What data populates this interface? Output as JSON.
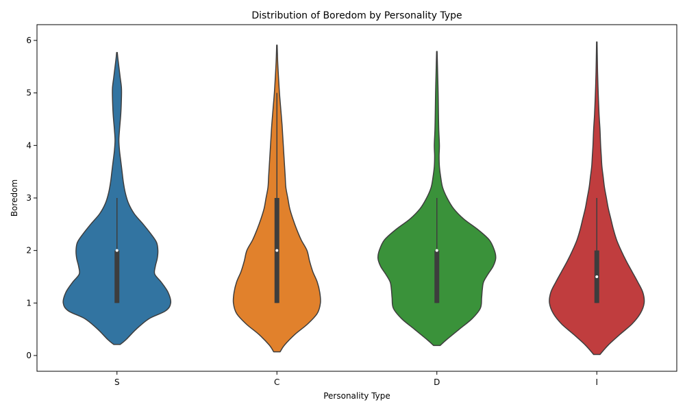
{
  "chart_data": {
    "type": "violin",
    "title": "Distribution of Boredom by Personality Type",
    "xlabel": "Personality Type",
    "ylabel": "Boredom",
    "categories": [
      "S",
      "C",
      "D",
      "I"
    ],
    "ylim": [
      -0.3,
      6.3
    ],
    "yticks": [
      0,
      1,
      2,
      3,
      4,
      5,
      6
    ],
    "grid": false,
    "series": [
      {
        "category": "S",
        "color": "#3274a1",
        "box": {
          "q1": 1,
          "median": 2,
          "q3": 2,
          "whisker_low": 1,
          "whisker_high": 3
        },
        "density": [
          [
            0.21,
            0.05
          ],
          [
            0.3,
            0.14
          ],
          [
            0.5,
            0.3
          ],
          [
            0.7,
            0.5
          ],
          [
            0.85,
            0.76
          ],
          [
            1.0,
            0.84
          ],
          [
            1.2,
            0.8
          ],
          [
            1.4,
            0.69
          ],
          [
            1.55,
            0.59
          ],
          [
            1.7,
            0.6
          ],
          [
            1.85,
            0.63
          ],
          [
            2.0,
            0.64
          ],
          [
            2.15,
            0.62
          ],
          [
            2.3,
            0.54
          ],
          [
            2.5,
            0.41
          ],
          [
            2.7,
            0.27
          ],
          [
            2.9,
            0.18
          ],
          [
            3.1,
            0.13
          ],
          [
            3.3,
            0.1
          ],
          [
            3.5,
            0.08
          ],
          [
            3.7,
            0.06
          ],
          [
            3.9,
            0.04
          ],
          [
            4.1,
            0.03
          ],
          [
            4.3,
            0.04
          ],
          [
            4.6,
            0.06
          ],
          [
            4.9,
            0.07
          ],
          [
            5.1,
            0.07
          ],
          [
            5.3,
            0.05
          ],
          [
            5.5,
            0.03
          ],
          [
            5.65,
            0.015
          ],
          [
            5.77,
            0.005
          ]
        ]
      },
      {
        "category": "C",
        "color": "#e1812c",
        "box": {
          "q1": 1,
          "median": 2,
          "q3": 3,
          "whisker_low": 1,
          "whisker_high": 5
        },
        "density": [
          [
            0.07,
            0.05
          ],
          [
            0.2,
            0.12
          ],
          [
            0.4,
            0.28
          ],
          [
            0.6,
            0.48
          ],
          [
            0.8,
            0.63
          ],
          [
            1.0,
            0.68
          ],
          [
            1.2,
            0.67
          ],
          [
            1.4,
            0.63
          ],
          [
            1.6,
            0.56
          ],
          [
            1.8,
            0.51
          ],
          [
            2.0,
            0.47
          ],
          [
            2.2,
            0.38
          ],
          [
            2.4,
            0.31
          ],
          [
            2.6,
            0.25
          ],
          [
            2.8,
            0.2
          ],
          [
            3.0,
            0.17
          ],
          [
            3.2,
            0.14
          ],
          [
            3.4,
            0.13
          ],
          [
            3.6,
            0.12
          ],
          [
            3.8,
            0.11
          ],
          [
            4.0,
            0.1
          ],
          [
            4.2,
            0.09
          ],
          [
            4.4,
            0.08
          ],
          [
            4.7,
            0.06
          ],
          [
            5.0,
            0.04
          ],
          [
            5.3,
            0.025
          ],
          [
            5.6,
            0.012
          ],
          [
            5.91,
            0.004
          ]
        ]
      },
      {
        "category": "D",
        "color": "#3a923a",
        "box": {
          "q1": 1,
          "median": 2,
          "q3": 2,
          "whisker_low": 1,
          "whisker_high": 3
        },
        "density": [
          [
            0.19,
            0.05
          ],
          [
            0.3,
            0.15
          ],
          [
            0.5,
            0.35
          ],
          [
            0.7,
            0.55
          ],
          [
            0.9,
            0.68
          ],
          [
            1.1,
            0.7
          ],
          [
            1.25,
            0.71
          ],
          [
            1.4,
            0.73
          ],
          [
            1.55,
            0.8
          ],
          [
            1.7,
            0.88
          ],
          [
            1.85,
            0.92
          ],
          [
            2.0,
            0.9
          ],
          [
            2.2,
            0.82
          ],
          [
            2.4,
            0.64
          ],
          [
            2.6,
            0.42
          ],
          [
            2.8,
            0.26
          ],
          [
            3.0,
            0.16
          ],
          [
            3.2,
            0.09
          ],
          [
            3.4,
            0.06
          ],
          [
            3.6,
            0.04
          ],
          [
            3.8,
            0.035
          ],
          [
            4.0,
            0.04
          ],
          [
            4.3,
            0.03
          ],
          [
            4.6,
            0.025
          ],
          [
            5.0,
            0.02
          ],
          [
            5.4,
            0.012
          ],
          [
            5.79,
            0.004
          ]
        ]
      },
      {
        "category": "I",
        "color": "#c03d3e",
        "box": {
          "q1": 1,
          "median": 1.5,
          "q3": 2,
          "whisker_low": 1,
          "whisker_high": 3
        },
        "density": [
          [
            0.02,
            0.05
          ],
          [
            0.2,
            0.18
          ],
          [
            0.4,
            0.36
          ],
          [
            0.6,
            0.55
          ],
          [
            0.8,
            0.68
          ],
          [
            1.0,
            0.74
          ],
          [
            1.2,
            0.72
          ],
          [
            1.4,
            0.64
          ],
          [
            1.6,
            0.55
          ],
          [
            1.8,
            0.46
          ],
          [
            2.0,
            0.38
          ],
          [
            2.2,
            0.31
          ],
          [
            2.4,
            0.26
          ],
          [
            2.6,
            0.22
          ],
          [
            2.8,
            0.18
          ],
          [
            3.0,
            0.15
          ],
          [
            3.2,
            0.12
          ],
          [
            3.4,
            0.1
          ],
          [
            3.6,
            0.08
          ],
          [
            3.8,
            0.07
          ],
          [
            4.0,
            0.06
          ],
          [
            4.3,
            0.05
          ],
          [
            4.6,
            0.035
          ],
          [
            5.0,
            0.022
          ],
          [
            5.4,
            0.012
          ],
          [
            5.97,
            0.004
          ]
        ]
      }
    ]
  }
}
